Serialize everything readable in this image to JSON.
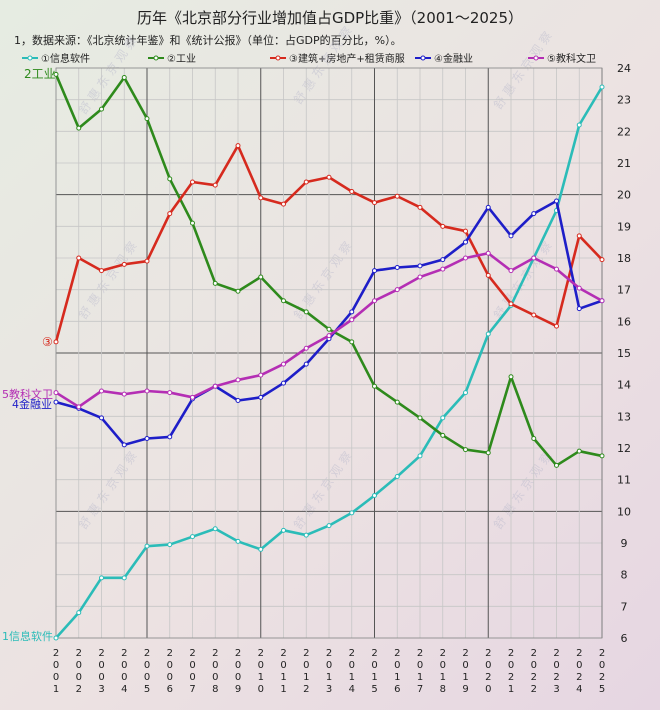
{
  "chart_data": {
    "type": "line",
    "title": "历年《北京部分行业增加值占GDP比重》（2001～2025）",
    "subtitle": "1，数据来源：《北京统计年鉴》和《统计公报》（单位：占GDP的百分比，%）。",
    "x": [
      "2001",
      "2002",
      "2003",
      "2004",
      "2005",
      "2006",
      "2007",
      "2008",
      "2009",
      "2010",
      "2011",
      "2012",
      "2013",
      "2014",
      "2015",
      "2016",
      "2017",
      "2018",
      "2019",
      "2020",
      "2021",
      "2022",
      "2023",
      "2024",
      "2025"
    ],
    "ylim": [
      6,
      24
    ],
    "yticks": [
      6,
      7,
      8,
      9,
      10,
      11,
      12,
      13,
      14,
      15,
      16,
      17,
      18,
      19,
      20,
      21,
      22,
      23,
      24
    ],
    "grid": true,
    "legend_position": "top",
    "series": [
      {
        "name": "①信息软件",
        "color": "#2bbcb8",
        "values": [
          6.0,
          6.8,
          7.9,
          7.9,
          8.9,
          8.95,
          9.2,
          9.45,
          9.05,
          8.8,
          9.4,
          9.25,
          9.55,
          9.95,
          10.5,
          11.1,
          11.75,
          12.95,
          13.75,
          15.6,
          16.5,
          18.0,
          19.5,
          22.2,
          23.4
        ]
      },
      {
        "name": "②工业",
        "color": "#2e8a1c",
        "values": [
          23.8,
          22.1,
          22.7,
          23.7,
          22.4,
          20.5,
          19.1,
          17.2,
          16.95,
          17.4,
          16.65,
          16.3,
          15.75,
          15.35,
          13.95,
          13.45,
          12.95,
          12.4,
          11.95,
          11.85,
          14.25,
          12.3,
          11.45,
          11.9,
          11.75
        ]
      },
      {
        "name": "③建筑+房地产+租赁商服",
        "color": "#d62a1e",
        "values": [
          15.35,
          18.0,
          17.6,
          17.8,
          17.9,
          19.4,
          20.4,
          20.3,
          21.55,
          19.9,
          19.7,
          20.4,
          20.55,
          20.1,
          19.75,
          19.95,
          19.6,
          19.0,
          18.85,
          17.45,
          16.55,
          16.2,
          15.85,
          18.7,
          17.95
        ]
      },
      {
        "name": "④金融业",
        "color": "#1e1ec8",
        "values": [
          13.45,
          13.25,
          12.95,
          12.1,
          12.3,
          12.35,
          13.55,
          13.95,
          13.5,
          13.6,
          14.05,
          14.65,
          15.45,
          16.3,
          17.6,
          17.7,
          17.75,
          17.95,
          18.5,
          19.6,
          18.7,
          19.4,
          19.8,
          16.4,
          16.65
        ]
      },
      {
        "name": "⑤教科文卫",
        "color": "#b42eb4",
        "values": [
          13.75,
          13.3,
          13.8,
          13.7,
          13.8,
          13.75,
          13.6,
          13.95,
          14.15,
          14.3,
          14.65,
          15.15,
          15.55,
          16.05,
          16.65,
          17.0,
          17.4,
          17.65,
          18.0,
          18.15,
          17.6,
          18.0,
          17.65,
          17.05,
          16.65
        ]
      }
    ],
    "annotations": [
      "2工业",
      "③",
      "5教科文卫",
      "4金融业",
      "1信息软件"
    ],
    "watermark": "舒 惠 东 京 观 察"
  },
  "colors": {
    "grid": "#c6c6c6",
    "major_grid": "#555555",
    "text": "#222222",
    "label_green": "#2e8a1c",
    "label_red": "#d62a1e",
    "label_purple": "#b42eb4",
    "label_blue": "#1e1ec8",
    "label_teal": "#2bbcb8"
  }
}
